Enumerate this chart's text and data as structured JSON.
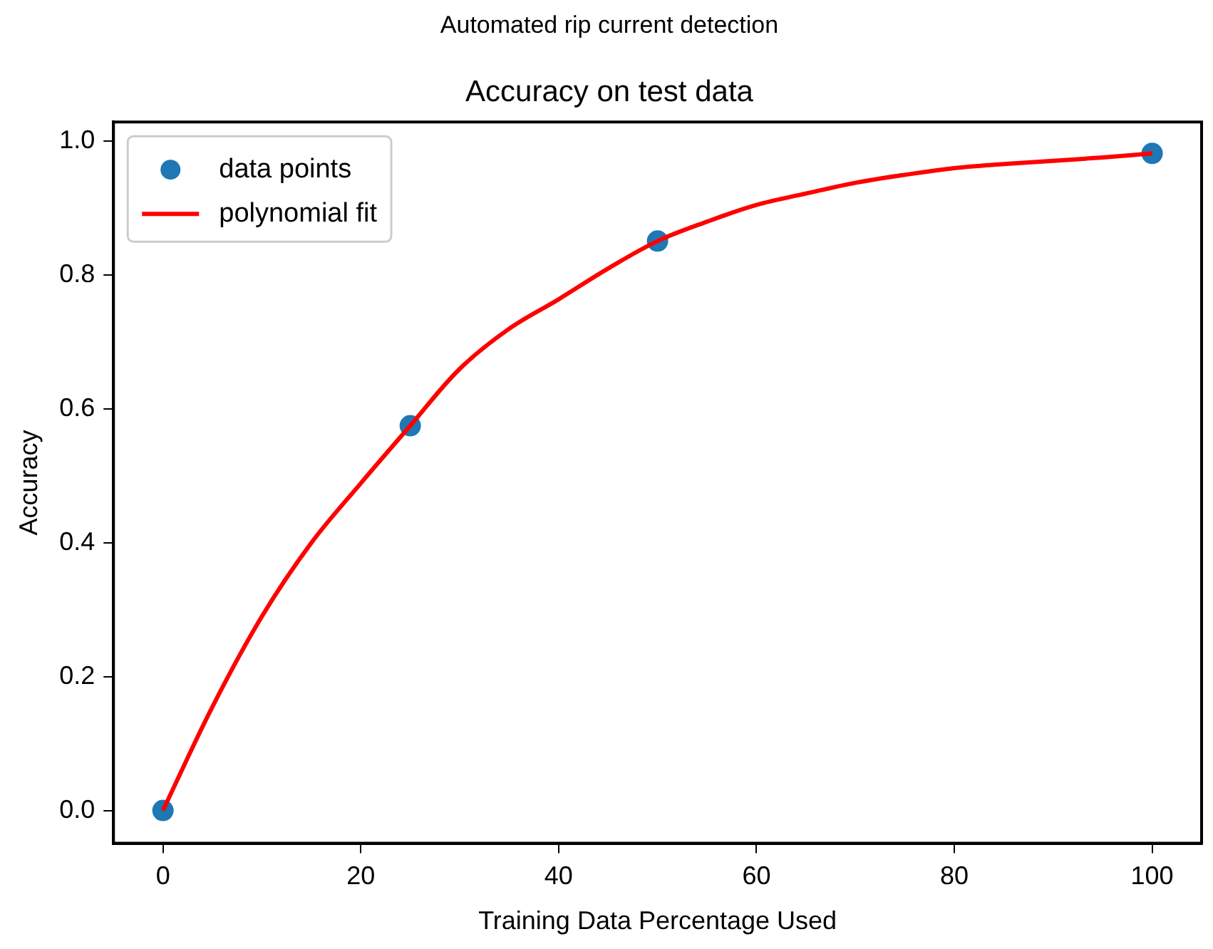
{
  "chart_data": {
    "type": "scatter",
    "title": "Automated rip current detection",
    "subtitle": "Accuracy on test data",
    "xlabel": "Training Data Percentage Used",
    "ylabel": "Accuracy",
    "x": [
      0,
      25,
      50,
      100
    ],
    "series": [
      {
        "name": "data points",
        "color": "#1f77b4",
        "marker": "circle",
        "values": [
          0,
          0.575,
          0.851,
          0.982
        ]
      },
      {
        "name": "polynomial fit",
        "type": "line",
        "color": "#ff0000",
        "marker": "none",
        "x": [
          0,
          5,
          10,
          15,
          20,
          25,
          30,
          35,
          40,
          45,
          50,
          55,
          60,
          65,
          70,
          75,
          80,
          85,
          90,
          95,
          100
        ],
        "values": [
          0,
          0.155,
          0.29,
          0.4,
          0.489,
          0.575,
          0.66,
          0.72,
          0.764,
          0.81,
          0.851,
          0.88,
          0.905,
          0.922,
          0.938,
          0.95,
          0.96,
          0.966,
          0.971,
          0.976,
          0.982
        ]
      }
    ],
    "xlim": [
      -5,
      105
    ],
    "xticks": [
      0,
      20,
      40,
      60,
      80,
      100
    ],
    "ylim": [
      -0.049,
      1.029
    ],
    "yticks": [
      {
        "value": 0,
        "label": "0.0"
      },
      {
        "value": 0.2,
        "label": "0.2"
      },
      {
        "value": 0.4,
        "label": "0.4"
      },
      {
        "value": 0.6,
        "label": "0.6"
      },
      {
        "value": 0.8,
        "label": "0.8"
      },
      {
        "value": 1,
        "label": "1.0"
      }
    ],
    "grid": false,
    "legend": "top left"
  }
}
